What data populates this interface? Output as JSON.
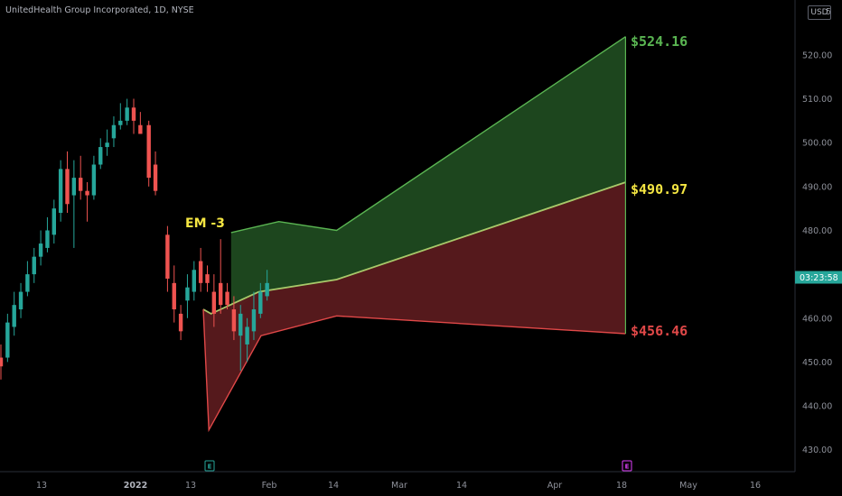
{
  "header": {
    "symbol_text": "UnitedHealth Group Incorporated, 1D, NYSE",
    "currency": "USD",
    "top_tick": "5"
  },
  "chart_data": {
    "type": "candlestick",
    "title": "UnitedHealth Group Incorporated, 1D, NYSE",
    "ylim": [
      425,
      528
    ],
    "y_ticks": [
      "430.00",
      "440.00",
      "450.00",
      "460.00",
      "470.00",
      "480.00",
      "490.00",
      "500.00",
      "510.00",
      "520.00"
    ],
    "x_ticks": [
      {
        "label": "13",
        "date": "2021-12-13"
      },
      {
        "label": "2022",
        "date": "2022-01-03",
        "bold": true
      },
      {
        "label": "13",
        "date": "2022-01-13"
      },
      {
        "label": "Feb",
        "date": "2022-02-01"
      },
      {
        "label": "14",
        "date": "2022-02-14"
      },
      {
        "label": "Mar",
        "date": "2022-03-01"
      },
      {
        "label": "14",
        "date": "2022-03-14"
      },
      {
        "label": "Apr",
        "date": "2022-04-01"
      },
      {
        "label": "18",
        "date": "2022-04-18"
      },
      {
        "label": "May",
        "date": "2022-05-02"
      },
      {
        "label": "16",
        "date": "2022-05-16"
      }
    ],
    "current_price_tag": "03:23:58",
    "grid": false,
    "candles": [
      {
        "o": 451,
        "h": 454,
        "l": 446,
        "c": 449
      },
      {
        "o": 451,
        "h": 461,
        "l": 450,
        "c": 459
      },
      {
        "o": 458,
        "h": 466,
        "l": 456,
        "c": 463
      },
      {
        "o": 462,
        "h": 468,
        "l": 460,
        "c": 466
      },
      {
        "o": 466,
        "h": 473,
        "l": 465,
        "c": 470
      },
      {
        "o": 470,
        "h": 476,
        "l": 468,
        "c": 474
      },
      {
        "o": 474,
        "h": 480,
        "l": 472,
        "c": 477
      },
      {
        "o": 476,
        "h": 483,
        "l": 475,
        "c": 480
      },
      {
        "o": 479,
        "h": 487,
        "l": 477,
        "c": 485
      },
      {
        "o": 484,
        "h": 496,
        "l": 482,
        "c": 494
      },
      {
        "o": 494,
        "h": 498,
        "l": 484,
        "c": 486
      },
      {
        "o": 488,
        "h": 496,
        "l": 476,
        "c": 492
      },
      {
        "o": 492,
        "h": 497,
        "l": 487,
        "c": 489
      },
      {
        "o": 489,
        "h": 491,
        "l": 482,
        "c": 488
      },
      {
        "o": 488,
        "h": 497,
        "l": 487,
        "c": 495
      },
      {
        "o": 495,
        "h": 501,
        "l": 494,
        "c": 499
      },
      {
        "o": 499,
        "h": 503,
        "l": 497,
        "c": 500
      },
      {
        "o": 501,
        "h": 506,
        "l": 499,
        "c": 504
      },
      {
        "o": 504,
        "h": 509,
        "l": 503,
        "c": 505
      },
      {
        "o": 505,
        "h": 510,
        "l": 504,
        "c": 508
      },
      {
        "o": 508,
        "h": 510,
        "l": 502,
        "c": 505
      },
      {
        "o": 504,
        "h": 507,
        "l": 502,
        "c": 502
      },
      {
        "o": 504,
        "h": 505,
        "l": 490,
        "c": 492
      },
      {
        "o": 495,
        "h": 498,
        "l": 488,
        "c": 489
      },
      {
        "o": 479,
        "h": 481,
        "l": 466,
        "c": 469
      },
      {
        "o": 468,
        "h": 472,
        "l": 459,
        "c": 462
      },
      {
        "o": 461,
        "h": 463,
        "l": 455,
        "c": 457
      },
      {
        "o": 464,
        "h": 470,
        "l": 460,
        "c": 467
      },
      {
        "o": 466,
        "h": 473,
        "l": 464,
        "c": 471
      },
      {
        "o": 473,
        "h": 476,
        "l": 466,
        "c": 468
      },
      {
        "o": 470,
        "h": 472,
        "l": 466,
        "c": 468
      },
      {
        "o": 466,
        "h": 470,
        "l": 458,
        "c": 461
      },
      {
        "o": 468,
        "h": 478,
        "l": 461,
        "c": 463
      },
      {
        "o": 466,
        "h": 468,
        "l": 462,
        "c": 463
      },
      {
        "o": 462,
        "h": 465,
        "l": 455,
        "c": 457
      },
      {
        "o": 456,
        "h": 463,
        "l": 448,
        "c": 461
      },
      {
        "o": 454,
        "h": 460,
        "l": 450,
        "c": 458
      },
      {
        "o": 457,
        "h": 466,
        "l": 455,
        "c": 462
      },
      {
        "o": 461,
        "h": 468,
        "l": 460,
        "c": 466
      },
      {
        "o": 465,
        "h": 471,
        "l": 464,
        "c": 468
      }
    ],
    "series": [
      {
        "name": "upper",
        "color": "#5ab552",
        "points": [
          [
            2.5,
            479.5
          ],
          [
            6.8,
            482.0
          ],
          [
            12.0,
            480.0
          ],
          [
            38.0,
            524.16
          ]
        ]
      },
      {
        "name": "mid",
        "color": "#a8c96a",
        "points": [
          [
            0,
            462.0
          ],
          [
            0.7,
            461.0
          ],
          [
            5.0,
            466.0
          ],
          [
            12.0,
            468.8
          ],
          [
            38.0,
            490.97
          ]
        ]
      },
      {
        "name": "lower",
        "color": "#e04848",
        "points": [
          [
            0,
            462.0
          ],
          [
            0.5,
            434.5
          ],
          [
            5.2,
            456.0
          ],
          [
            12.0,
            460.5
          ],
          [
            38.0,
            456.46
          ]
        ]
      }
    ],
    "annotations": [
      {
        "text": "EM -3",
        "x": -0.5,
        "y": 481.5,
        "color": "#f5e642"
      },
      {
        "text": "$524.16",
        "x": 38.0,
        "y": 524.16,
        "color": "#5ab552"
      },
      {
        "text": "$490.97",
        "x": 38.0,
        "y": 490.97,
        "color": "#f5e642"
      },
      {
        "text": "$456.46",
        "x": 38.0,
        "y": 456.46,
        "color": "#e04848"
      }
    ],
    "markers": [
      {
        "text": "E",
        "x": 1.0,
        "color": "#26a69a"
      },
      {
        "text": "E",
        "x": 38.0,
        "color": "#e040fb"
      }
    ]
  }
}
